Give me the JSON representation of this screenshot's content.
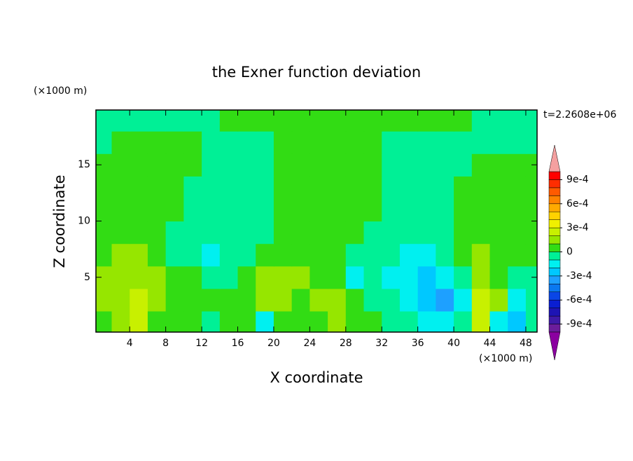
{
  "chart_data": {
    "type": "contour",
    "title": "the Exner function deviation",
    "x_label": "X coordinate",
    "y_label": "Z coordinate",
    "x_unit": "(×1000 m)",
    "y_unit": "(×1000 m)",
    "annotation": "t=2.2608e+06",
    "xlim": [
      0.25,
      49.25
    ],
    "ylim": [
      0.125,
      19.875
    ],
    "xticks": [
      4,
      8,
      12,
      16,
      20,
      24,
      28,
      32,
      36,
      40,
      44,
      48
    ],
    "yticks": [
      5,
      10,
      15
    ],
    "x": [
      1,
      3,
      5,
      7,
      9,
      11,
      13,
      15,
      17,
      19,
      21,
      23,
      25,
      27,
      29,
      31,
      33,
      35,
      37,
      39,
      41,
      43,
      45,
      47,
      49
    ],
    "y": [
      1,
      3,
      5,
      7,
      9,
      11,
      13,
      15,
      17,
      19
    ],
    "z": [
      [
        5e-05,
        0.00015,
        0.00025,
        5e-05,
        5e-05,
        5e-05,
        -5e-05,
        5e-05,
        5e-05,
        -0.00015,
        5e-05,
        5e-05,
        5e-05,
        0.00015,
        5e-05,
        5e-05,
        -5e-05,
        -5e-05,
        -0.00015,
        -0.00015,
        -5e-05,
        0.00025,
        -0.00015,
        -0.00025,
        -5e-05
      ],
      [
        0.00015,
        0.00015,
        0.00025,
        0.00015,
        5e-05,
        5e-05,
        5e-05,
        5e-05,
        5e-05,
        0.00015,
        0.00015,
        5e-05,
        0.00015,
        0.00015,
        5e-05,
        -5e-05,
        -5e-05,
        -0.00015,
        -0.00025,
        -0.00035,
        -0.00015,
        0.00025,
        0.00015,
        -0.00015,
        -5e-05
      ],
      [
        0.00015,
        0.00015,
        0.00015,
        0.00015,
        5e-05,
        5e-05,
        -5e-05,
        -5e-05,
        5e-05,
        0.00015,
        0.00015,
        0.00015,
        5e-05,
        5e-05,
        -0.00015,
        -5e-05,
        -0.00015,
        -0.00015,
        -0.00025,
        -0.00015,
        -5e-05,
        0.00015,
        5e-05,
        -5e-05,
        -5e-05
      ],
      [
        5e-05,
        0.00015,
        0.00015,
        5e-05,
        -5e-05,
        -5e-05,
        -0.00015,
        -5e-05,
        -5e-05,
        5e-05,
        5e-05,
        5e-05,
        5e-05,
        5e-05,
        -5e-05,
        -5e-05,
        -5e-05,
        -0.00015,
        -0.00015,
        -5e-05,
        5e-05,
        0.00015,
        5e-05,
        5e-05,
        5e-05
      ],
      [
        5e-05,
        5e-05,
        5e-05,
        5e-05,
        -5e-05,
        -5e-05,
        -5e-05,
        -5e-05,
        -5e-05,
        -5e-05,
        5e-05,
        5e-05,
        5e-05,
        5e-05,
        5e-05,
        -5e-05,
        -5e-05,
        -5e-05,
        -5e-05,
        -5e-05,
        5e-05,
        5e-05,
        5e-05,
        5e-05,
        5e-05
      ],
      [
        5e-05,
        5e-05,
        5e-05,
        5e-05,
        5e-05,
        -5e-05,
        -5e-05,
        -5e-05,
        -5e-05,
        -5e-05,
        5e-05,
        5e-05,
        5e-05,
        5e-05,
        5e-05,
        5e-05,
        -5e-05,
        -5e-05,
        -5e-05,
        -5e-05,
        5e-05,
        5e-05,
        5e-05,
        5e-05,
        5e-05
      ],
      [
        5e-05,
        5e-05,
        5e-05,
        5e-05,
        5e-05,
        -5e-05,
        -5e-05,
        -5e-05,
        -5e-05,
        -5e-05,
        5e-05,
        5e-05,
        5e-05,
        5e-05,
        5e-05,
        5e-05,
        -5e-05,
        -5e-05,
        -5e-05,
        -5e-05,
        5e-05,
        5e-05,
        5e-05,
        5e-05,
        5e-05
      ],
      [
        5e-05,
        5e-05,
        5e-05,
        5e-05,
        5e-05,
        5e-05,
        -5e-05,
        -5e-05,
        -5e-05,
        -5e-05,
        5e-05,
        5e-05,
        5e-05,
        5e-05,
        5e-05,
        5e-05,
        -5e-05,
        -5e-05,
        -5e-05,
        -5e-05,
        -5e-05,
        5e-05,
        5e-05,
        5e-05,
        5e-05
      ],
      [
        -5e-05,
        5e-05,
        5e-05,
        5e-05,
        5e-05,
        5e-05,
        -5e-05,
        -5e-05,
        -5e-05,
        -5e-05,
        5e-05,
        5e-05,
        5e-05,
        5e-05,
        5e-05,
        5e-05,
        -5e-05,
        -5e-05,
        -5e-05,
        -5e-05,
        -5e-05,
        -5e-05,
        -5e-05,
        -5e-05,
        -5e-05
      ],
      [
        -5e-05,
        -5e-05,
        -5e-05,
        -5e-05,
        -5e-05,
        -5e-05,
        -5e-05,
        5e-05,
        5e-05,
        5e-05,
        5e-05,
        5e-05,
        5e-05,
        5e-05,
        5e-05,
        5e-05,
        5e-05,
        5e-05,
        5e-05,
        5e-05,
        5e-05,
        -5e-05,
        -5e-05,
        -5e-05,
        -5e-05
      ]
    ],
    "colorbar": {
      "levels": [
        -0.001,
        -0.0009,
        -0.0008,
        -0.0007,
        -0.0006,
        -0.0005,
        -0.0004,
        -0.0003,
        -0.0002,
        -0.0001,
        0,
        0.0001,
        0.0002,
        0.0003,
        0.0004,
        0.0005,
        0.0006,
        0.0007,
        0.0008,
        0.0009,
        0.001
      ],
      "colors": [
        "#6b1d9b",
        "#3f1aa8",
        "#1e14b4",
        "#0a1ed2",
        "#0a46e6",
        "#0a78f0",
        "#1ea0ff",
        "#00c8ff",
        "#00f0f0",
        "#00f096",
        "#32dc14",
        "#96e600",
        "#c8f000",
        "#f0f000",
        "#ffd200",
        "#ffaa00",
        "#ff8200",
        "#ff5a00",
        "#ff2d00",
        "#ff0000"
      ],
      "extend_colors": [
        "#8b00a0",
        "#f4a0a0"
      ],
      "ticks": [
        {
          "value": 0.0009,
          "label": "9e-4"
        },
        {
          "value": 0.0006,
          "label": "6e-4"
        },
        {
          "value": 0.0003,
          "label": "3e-4"
        },
        0,
        {
          "value": -0.0003,
          "label": "-3e-4"
        },
        {
          "value": -0.0006,
          "label": "-6e-4"
        },
        {
          "value": -0.0009,
          "label": "-9e-4"
        }
      ]
    }
  }
}
